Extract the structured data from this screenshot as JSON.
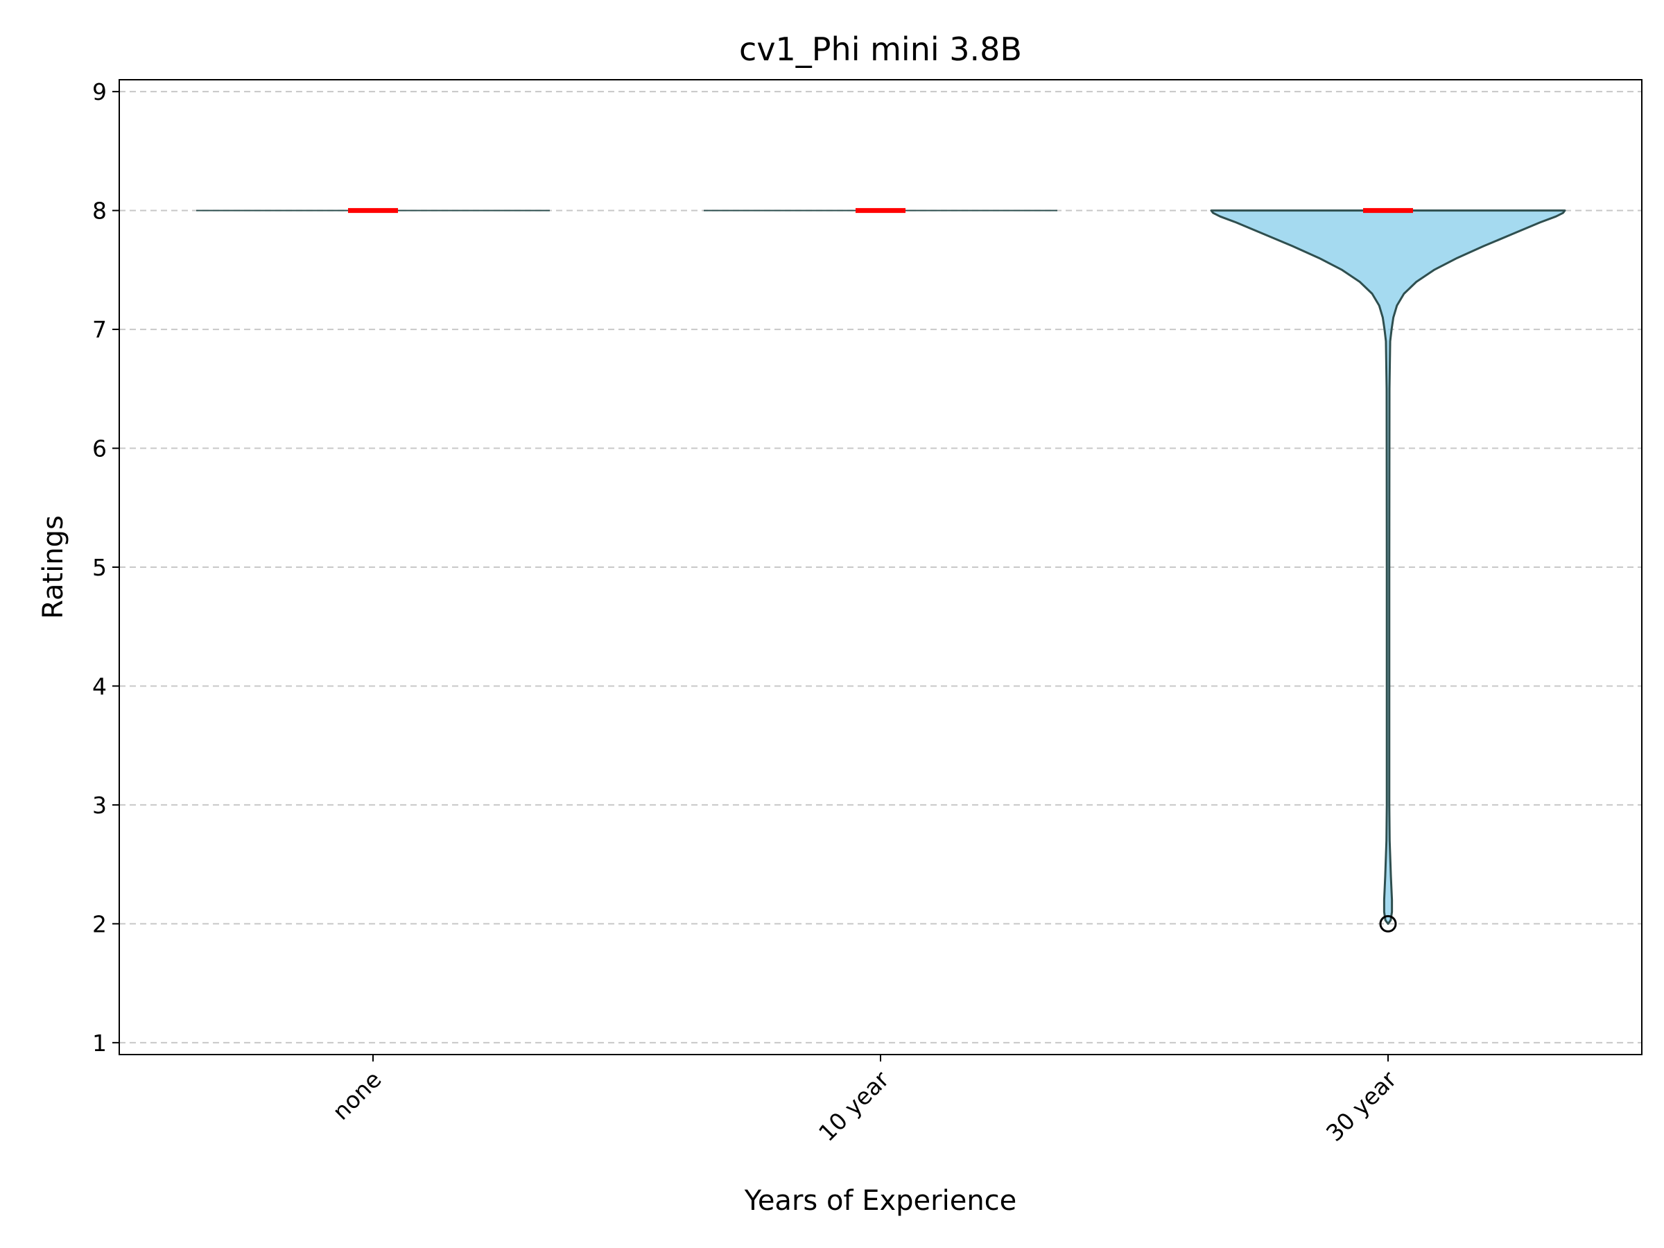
{
  "chart_data": {
    "type": "violin",
    "title": "cv1_Phi mini 3.8B",
    "xlabel": "Years of Experience",
    "ylabel": "Ratings",
    "categories": [
      "none",
      "10 year",
      "30 year"
    ],
    "ylim": [
      0.9,
      9.1
    ],
    "yticks": [
      "1",
      "2",
      "3",
      "4",
      "5",
      "6",
      "7",
      "8",
      "9"
    ],
    "grid": "horizontal dashed",
    "x_tick_rotation": "45 degrees",
    "series": [
      {
        "category": "none",
        "median": 8,
        "min": 8,
        "max": 8,
        "density": [
          [
            8,
            1.0
          ]
        ],
        "outliers": []
      },
      {
        "category": "10 year",
        "median": 8,
        "min": 8,
        "max": 8,
        "density": [
          [
            8,
            1.0
          ]
        ],
        "outliers": []
      },
      {
        "category": "30 year",
        "median": 8,
        "min": 2,
        "max": 8,
        "density": [
          [
            8.0,
            1.0
          ],
          [
            7.98,
            0.99
          ],
          [
            7.95,
            0.95
          ],
          [
            7.9,
            0.86
          ],
          [
            7.8,
            0.7
          ],
          [
            7.7,
            0.54
          ],
          [
            7.6,
            0.39
          ],
          [
            7.5,
            0.26
          ],
          [
            7.4,
            0.16
          ],
          [
            7.3,
            0.09
          ],
          [
            7.2,
            0.05
          ],
          [
            7.1,
            0.03
          ],
          [
            7.0,
            0.02
          ],
          [
            6.9,
            0.012
          ],
          [
            6.5,
            0.008
          ],
          [
            5.0,
            0.007
          ],
          [
            3.0,
            0.007
          ],
          [
            2.7,
            0.009
          ],
          [
            2.4,
            0.016
          ],
          [
            2.2,
            0.022
          ],
          [
            2.1,
            0.022
          ],
          [
            2.03,
            0.015
          ],
          [
            2.0,
            0.0
          ]
        ],
        "outliers": [
          2
        ]
      }
    ],
    "colors": {
      "violin_fill": "#87CEEB",
      "violin_edge": "#2f4f4f",
      "median": "#ff0000",
      "grid": "#c8c8c8",
      "outlier": "#000000"
    }
  }
}
